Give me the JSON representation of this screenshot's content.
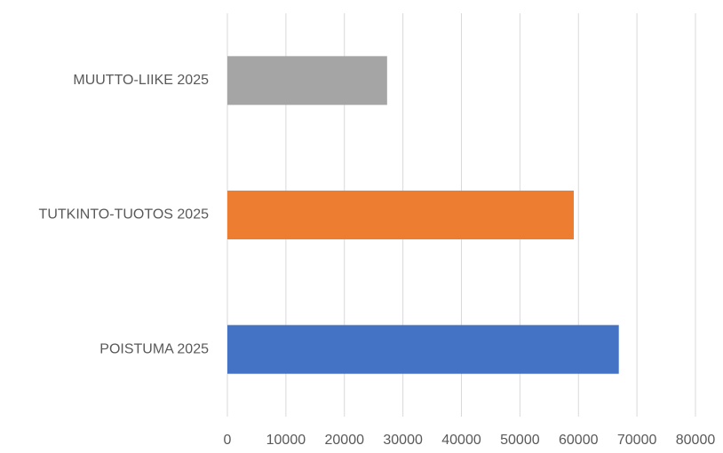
{
  "chart_data": {
    "type": "barh",
    "categories": [
      "MUUTTO-LIIKE 2025",
      "TUTKINTO-TUOTOS 2025",
      "POISTUMA 2025"
    ],
    "values": [
      27300,
      59200,
      66900
    ],
    "colors": [
      "#a5a5a5",
      "#ed7d31",
      "#4472c4"
    ],
    "xlim": [
      0,
      80000
    ],
    "xticks": [
      0,
      10000,
      20000,
      30000,
      40000,
      50000,
      60000,
      70000,
      80000
    ],
    "grid": true
  }
}
